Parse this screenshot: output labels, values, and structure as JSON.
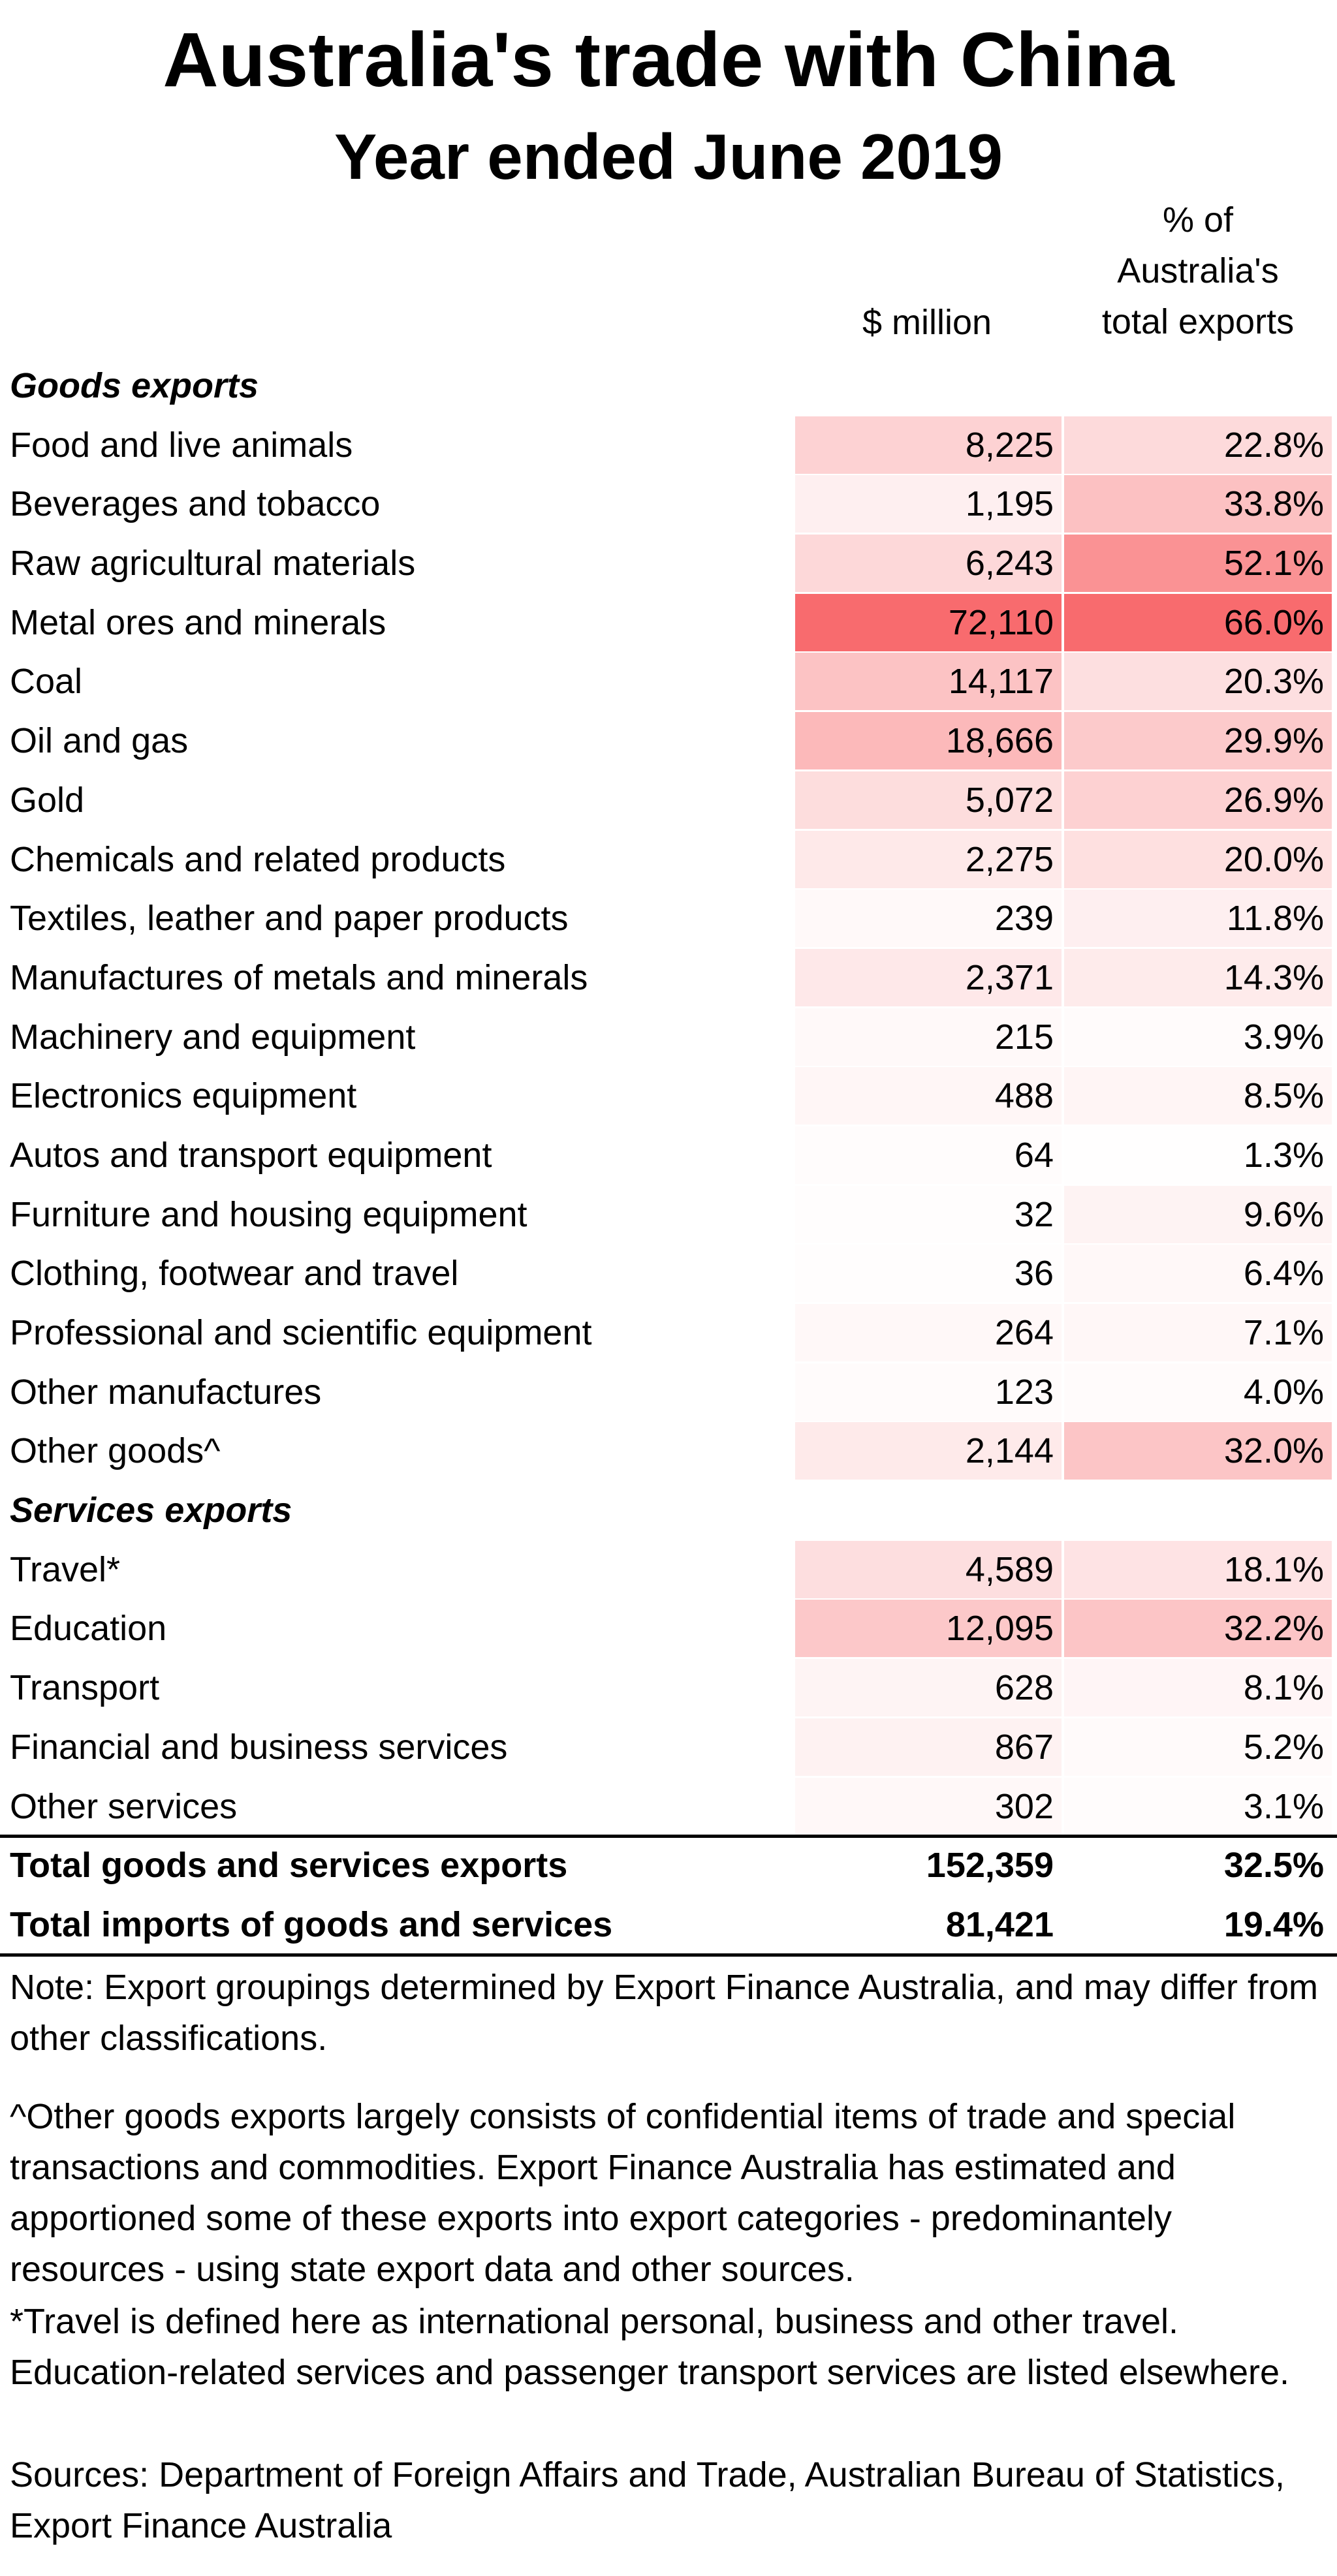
{
  "colors": {
    "heat_max": "#f86b6e",
    "heat_min": "#ffffff",
    "text": "#000000"
  },
  "chart_data": {
    "type": "table",
    "title": "Australia's trade with China",
    "subtitle": "Year ended June 2019",
    "columns": [
      "$ million",
      "% of Australia's total exports"
    ],
    "column_header_lines": {
      "c1": [
        "$ million"
      ],
      "c2": [
        "% of",
        "Australia's",
        "total exports"
      ]
    },
    "rows": [
      {
        "kind": "section",
        "label": "Goods exports"
      },
      {
        "kind": "item",
        "label": "Food and live animals",
        "value": "8,225",
        "share": "22.8%",
        "value_num": 8225,
        "share_num": 22.8
      },
      {
        "kind": "item",
        "label": "Beverages and tobacco",
        "value": "1,195",
        "share": "33.8%",
        "value_num": 1195,
        "share_num": 33.8
      },
      {
        "kind": "item",
        "label": "Raw agricultural materials",
        "value": "6,243",
        "share": "52.1%",
        "value_num": 6243,
        "share_num": 52.1
      },
      {
        "kind": "item",
        "label": "Metal ores and minerals",
        "value": "72,110",
        "share": "66.0%",
        "value_num": 72110,
        "share_num": 66.0
      },
      {
        "kind": "item",
        "label": "Coal",
        "value": "14,117",
        "share": "20.3%",
        "value_num": 14117,
        "share_num": 20.3
      },
      {
        "kind": "item",
        "label": "Oil and gas",
        "value": "18,666",
        "share": "29.9%",
        "value_num": 18666,
        "share_num": 29.9
      },
      {
        "kind": "item",
        "label": "Gold",
        "value": "5,072",
        "share": "26.9%",
        "value_num": 5072,
        "share_num": 26.9
      },
      {
        "kind": "item",
        "label": "Chemicals and related products",
        "value": "2,275",
        "share": "20.0%",
        "value_num": 2275,
        "share_num": 20.0
      },
      {
        "kind": "item",
        "label": "Textiles, leather and paper products",
        "value": "239",
        "share": "11.8%",
        "value_num": 239,
        "share_num": 11.8
      },
      {
        "kind": "item",
        "label": "Manufactures of metals and minerals",
        "value": "2,371",
        "share": "14.3%",
        "value_num": 2371,
        "share_num": 14.3
      },
      {
        "kind": "item",
        "label": "Machinery and equipment",
        "value": "215",
        "share": "3.9%",
        "value_num": 215,
        "share_num": 3.9
      },
      {
        "kind": "item",
        "label": "Electronics equipment",
        "value": "488",
        "share": "8.5%",
        "value_num": 488,
        "share_num": 8.5
      },
      {
        "kind": "item",
        "label": "Autos and transport equipment",
        "value": "64",
        "share": "1.3%",
        "value_num": 64,
        "share_num": 1.3
      },
      {
        "kind": "item",
        "label": "Furniture and housing equipment",
        "value": "32",
        "share": "9.6%",
        "value_num": 32,
        "share_num": 9.6
      },
      {
        "kind": "item",
        "label": "Clothing, footwear and travel",
        "value": "36",
        "share": "6.4%",
        "value_num": 36,
        "share_num": 6.4
      },
      {
        "kind": "item",
        "label": "Professional and scientific equipment",
        "value": "264",
        "share": "7.1%",
        "value_num": 264,
        "share_num": 7.1
      },
      {
        "kind": "item",
        "label": "Other manufactures",
        "value": "123",
        "share": "4.0%",
        "value_num": 123,
        "share_num": 4.0
      },
      {
        "kind": "item",
        "label": "Other goods^",
        "value": "2,144",
        "share": "32.0%",
        "value_num": 2144,
        "share_num": 32.0
      },
      {
        "kind": "section",
        "label": "Services exports"
      },
      {
        "kind": "item",
        "label": "Travel*",
        "value": "4,589",
        "share": "18.1%",
        "value_num": 4589,
        "share_num": 18.1
      },
      {
        "kind": "item",
        "label": "Education",
        "value": "12,095",
        "share": "32.2%",
        "value_num": 12095,
        "share_num": 32.2
      },
      {
        "kind": "item",
        "label": "Transport",
        "value": "628",
        "share": "8.1%",
        "value_num": 628,
        "share_num": 8.1
      },
      {
        "kind": "item",
        "label": "Financial and business services",
        "value": "867",
        "share": "5.2%",
        "value_num": 867,
        "share_num": 5.2
      },
      {
        "kind": "item",
        "label": "Other services",
        "value": "302",
        "share": "3.1%",
        "value_num": 302,
        "share_num": 3.1
      },
      {
        "kind": "total",
        "label": "Total goods and services exports",
        "value": "152,359",
        "share": "32.5%"
      },
      {
        "kind": "total",
        "label": "Total imports of goods and services",
        "value": "81,421",
        "share": "19.4%"
      }
    ]
  },
  "notes": [
    "Note: Export groupings determined by Export Finance Australia, and may differ from other classifications.",
    "^Other goods exports largely consists of confidential items of trade and special transactions and commodities. Export Finance Australia has estimated and apportioned some of these exports into export categories - predominantely resources - using state export data and other sources.",
    "*Travel is defined here as international personal, business and other travel. Education-related services and passenger transport services are listed elsewhere.",
    "Sources: Department of Foreign Affairs and Trade, Australian Bureau of Statistics, Export Finance Australia"
  ]
}
